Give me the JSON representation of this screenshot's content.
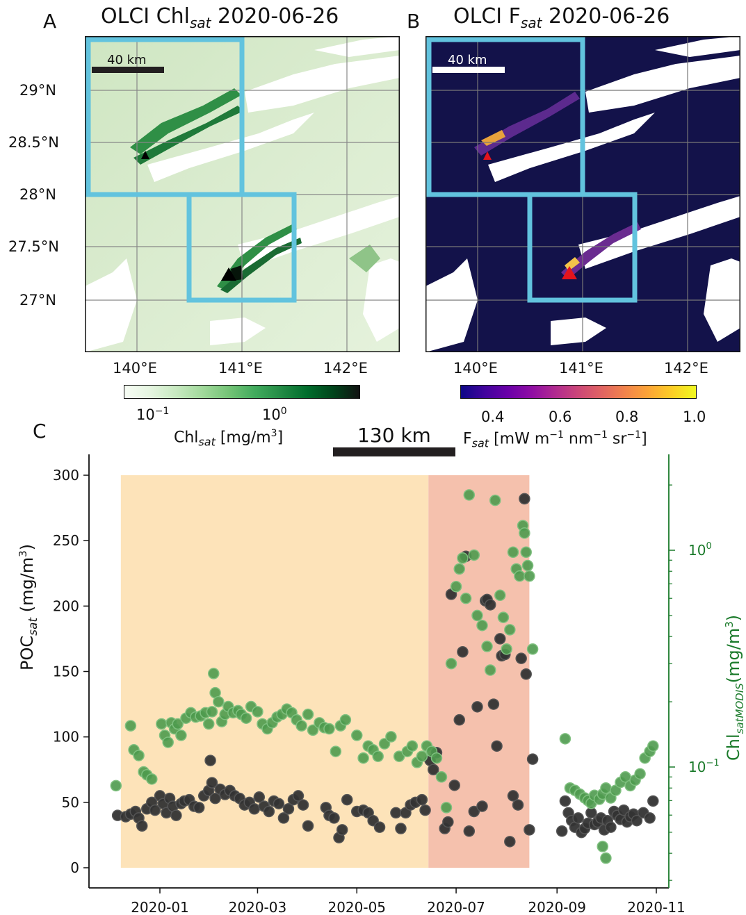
{
  "panels": {
    "A": {
      "letter": "A",
      "title_main": "OLCI Chl",
      "title_sub": "sat",
      "title_date": " 2020-06-26",
      "scale_label": "40 km",
      "lat_ticks": [
        "29°N",
        "28.5°N",
        "28°N",
        "27.5°N",
        "27°N"
      ],
      "lon_ticks": [
        "140°E",
        "141°E",
        "142°E"
      ],
      "colorbar": {
        "cmap": "Greens",
        "tick_labels": [
          {
            "base": "10",
            "exp": "−1"
          },
          {
            "base": "10",
            "exp": "0"
          }
        ],
        "label_main": "Chl",
        "label_sub": "sat",
        "label_unit": " [mg/m",
        "label_unit_exp": "3",
        "label_close": "]"
      }
    },
    "B": {
      "letter": "B",
      "title_main": "OLCI F",
      "title_sub": "sat",
      "title_date": " 2020-06-26",
      "scale_label": "40 km",
      "lon_ticks": [
        "140°E",
        "141°E",
        "142°E"
      ],
      "colorbar": {
        "cmap": "plasma",
        "tick_labels": [
          "0.4",
          "0.6",
          "0.8",
          "1.0"
        ],
        "range": [
          0.3,
          1.0
        ],
        "label_main": "F",
        "label_sub": "sat",
        "label_unit": " [mW m",
        "exp1": "−1",
        "unit2": " nm",
        "exp2": "−1",
        "unit3": " sr",
        "exp3": "−1",
        "label_close": "]"
      }
    },
    "C": {
      "letter": "C",
      "scale_label": "130 km"
    }
  },
  "colors": {
    "box": "#62c3de",
    "black_dots": "#333333",
    "green_dots": "#4e9a4e",
    "period1": "#fde3b9",
    "period2": "#f5c1ad",
    "green_axis": "#1a7a2a",
    "marker_red": "#e4141c"
  },
  "chart_data": {
    "type": "scatter",
    "x_label": "",
    "y_left_label": "POC",
    "y_left_label_sub": "sat",
    "y_left_label_unit": " (mg/m",
    "y_left_label_exp": "3",
    "y_right_label": "Chl",
    "y_right_label_sub": "satMODIS",
    "y_right_label_unit": "(mg/m",
    "y_right_label_exp": "3",
    "x_ticks": [
      "2020-01",
      "2020-03",
      "2020-05",
      "2020-07",
      "2020-09",
      "2020-11"
    ],
    "y_left_ticks": [
      0,
      50,
      100,
      150,
      200,
      250,
      300
    ],
    "y_left_range": [
      -10,
      315
    ],
    "y_right_ticks": [
      {
        "base": "10",
        "exp": "−1"
      },
      {
        "base": "10",
        "exp": "0"
      }
    ],
    "y_right_scale": "log",
    "shaded_periods": [
      {
        "start": "2019-12-08",
        "end": "2020-06-14",
        "ymax": 300
      },
      {
        "start": "2020-06-14",
        "end": "2020-08-15",
        "ymax": 300
      }
    ],
    "series": [
      {
        "axis": "left",
        "marker": "circle",
        "points": [
          [
            "2019-12-06",
            40
          ],
          [
            "2019-12-11",
            39
          ],
          [
            "2019-12-14",
            41
          ],
          [
            "2019-12-17",
            43
          ],
          [
            "2019-12-19",
            38
          ],
          [
            "2019-12-21",
            32
          ],
          [
            "2019-12-24",
            45
          ],
          [
            "2019-12-27",
            50
          ],
          [
            "2019-12-29",
            44
          ],
          [
            "2020-01-01",
            55
          ],
          [
            "2020-01-03",
            49
          ],
          [
            "2020-01-05",
            42
          ],
          [
            "2020-01-07",
            53
          ],
          [
            "2020-01-09",
            47
          ],
          [
            "2020-01-11",
            40
          ],
          [
            "2020-01-14",
            49
          ],
          [
            "2020-01-16",
            51
          ],
          [
            "2020-01-19",
            52
          ],
          [
            "2020-01-22",
            47
          ],
          [
            "2020-01-25",
            46
          ],
          [
            "2020-01-28",
            55
          ],
          [
            "2020-01-31",
            59
          ],
          [
            "2020-02-01",
            82
          ],
          [
            "2020-02-02",
            65
          ],
          [
            "2020-02-04",
            53
          ],
          [
            "2020-02-07",
            60
          ],
          [
            "2020-02-10",
            56
          ],
          [
            "2020-02-13",
            59
          ],
          [
            "2020-02-16",
            55
          ],
          [
            "2020-02-19",
            53
          ],
          [
            "2020-02-22",
            48
          ],
          [
            "2020-02-25",
            50
          ],
          [
            "2020-02-28",
            45
          ],
          [
            "2020-03-02",
            54
          ],
          [
            "2020-03-05",
            47
          ],
          [
            "2020-03-08",
            43
          ],
          [
            "2020-03-11",
            51
          ],
          [
            "2020-03-14",
            49
          ],
          [
            "2020-03-17",
            38
          ],
          [
            "2020-03-20",
            45
          ],
          [
            "2020-03-23",
            52
          ],
          [
            "2020-03-26",
            55
          ],
          [
            "2020-03-29",
            48
          ],
          [
            "2020-04-01",
            32
          ],
          [
            "2020-04-12",
            46
          ],
          [
            "2020-04-14",
            40
          ],
          [
            "2020-04-17",
            38
          ],
          [
            "2020-04-20",
            23
          ],
          [
            "2020-04-22",
            29
          ],
          [
            "2020-04-25",
            52
          ],
          [
            "2020-05-01",
            43
          ],
          [
            "2020-05-05",
            44
          ],
          [
            "2020-05-08",
            42
          ],
          [
            "2020-05-11",
            36
          ],
          [
            "2020-05-15",
            31
          ],
          [
            "2020-05-25",
            42
          ],
          [
            "2020-05-28",
            30
          ],
          [
            "2020-05-31",
            42
          ],
          [
            "2020-06-03",
            48
          ],
          [
            "2020-06-06",
            50
          ],
          [
            "2020-06-10",
            52
          ],
          [
            "2020-06-12",
            44
          ],
          [
            "2020-06-15",
            82
          ],
          [
            "2020-06-17",
            75
          ],
          [
            "2020-06-19",
            88
          ],
          [
            "2020-06-24",
            30
          ],
          [
            "2020-06-26",
            35
          ],
          [
            "2020-06-28",
            209
          ],
          [
            "2020-06-30",
            63
          ],
          [
            "2020-07-03",
            113
          ],
          [
            "2020-07-05",
            165
          ],
          [
            "2020-07-07",
            238
          ],
          [
            "2020-07-09",
            28
          ],
          [
            "2020-07-12",
            43
          ],
          [
            "2020-07-14",
            123
          ],
          [
            "2020-07-17",
            47
          ],
          [
            "2020-07-19",
            204
          ],
          [
            "2020-07-20",
            205
          ],
          [
            "2020-07-22",
            201
          ],
          [
            "2020-07-24",
            125
          ],
          [
            "2020-07-26",
            93
          ],
          [
            "2020-07-28",
            175
          ],
          [
            "2020-07-29",
            162
          ],
          [
            "2020-07-31",
            163
          ],
          [
            "2020-08-03",
            20
          ],
          [
            "2020-08-05",
            55
          ],
          [
            "2020-08-08",
            48
          ],
          [
            "2020-08-10",
            160
          ],
          [
            "2020-08-12",
            282
          ],
          [
            "2020-08-13",
            148
          ],
          [
            "2020-08-15",
            29
          ],
          [
            "2020-08-17",
            83
          ],
          [
            "2020-09-04",
            28
          ],
          [
            "2020-09-06",
            51
          ],
          [
            "2020-09-08",
            42
          ],
          [
            "2020-09-10",
            36
          ],
          [
            "2020-09-12",
            31
          ],
          [
            "2020-09-14",
            38
          ],
          [
            "2020-09-16",
            27
          ],
          [
            "2020-09-18",
            30
          ],
          [
            "2020-09-20",
            34
          ],
          [
            "2020-09-22",
            42
          ],
          [
            "2020-09-24",
            33
          ],
          [
            "2020-09-26",
            35
          ],
          [
            "2020-09-28",
            38
          ],
          [
            "2020-09-30",
            29
          ],
          [
            "2020-10-02",
            36
          ],
          [
            "2020-10-04",
            31
          ],
          [
            "2020-10-06",
            43
          ],
          [
            "2020-10-08",
            40
          ],
          [
            "2020-10-10",
            37
          ],
          [
            "2020-10-12",
            44
          ],
          [
            "2020-10-14",
            35
          ],
          [
            "2020-10-16",
            39
          ],
          [
            "2020-10-18",
            41
          ],
          [
            "2020-10-20",
            36
          ],
          [
            "2020-10-24",
            42
          ],
          [
            "2020-10-28",
            38
          ],
          [
            "2020-10-30",
            51
          ]
        ]
      },
      {
        "axis": "right",
        "marker": "circle",
        "points": [
          [
            "2019-12-05",
            0.082
          ],
          [
            "2019-12-14",
            0.155
          ],
          [
            "2019-12-16",
            0.12
          ],
          [
            "2019-12-19",
            0.113
          ],
          [
            "2019-12-22",
            0.095
          ],
          [
            "2019-12-24",
            0.092
          ],
          [
            "2019-12-27",
            0.088
          ],
          [
            "2020-01-02",
            0.158
          ],
          [
            "2020-01-04",
            0.14
          ],
          [
            "2020-01-06",
            0.13
          ],
          [
            "2020-01-08",
            0.16
          ],
          [
            "2020-01-10",
            0.15
          ],
          [
            "2020-01-12",
            0.158
          ],
          [
            "2020-01-14",
            0.14
          ],
          [
            "2020-01-17",
            0.168
          ],
          [
            "2020-01-20",
            0.178
          ],
          [
            "2020-01-23",
            0.17
          ],
          [
            "2020-01-26",
            0.172
          ],
          [
            "2020-01-29",
            0.178
          ],
          [
            "2020-01-31",
            0.158
          ],
          [
            "2020-02-02",
            0.18
          ],
          [
            "2020-02-03",
            0.27
          ],
          [
            "2020-02-04",
            0.22
          ],
          [
            "2020-02-06",
            0.2
          ],
          [
            "2020-02-08",
            0.162
          ],
          [
            "2020-02-10",
            0.175
          ],
          [
            "2020-02-12",
            0.19
          ],
          [
            "2020-02-15",
            0.178
          ],
          [
            "2020-02-18",
            0.182
          ],
          [
            "2020-02-20",
            0.175
          ],
          [
            "2020-02-23",
            0.168
          ],
          [
            "2020-02-26",
            0.19
          ],
          [
            "2020-03-01",
            0.18
          ],
          [
            "2020-03-04",
            0.158
          ],
          [
            "2020-03-07",
            0.15
          ],
          [
            "2020-03-10",
            0.16
          ],
          [
            "2020-03-13",
            0.17
          ],
          [
            "2020-03-16",
            0.175
          ],
          [
            "2020-03-19",
            0.185
          ],
          [
            "2020-03-22",
            0.178
          ],
          [
            "2020-03-25",
            0.165
          ],
          [
            "2020-03-28",
            0.155
          ],
          [
            "2020-04-01",
            0.175
          ],
          [
            "2020-04-04",
            0.148
          ],
          [
            "2020-04-08",
            0.16
          ],
          [
            "2020-04-11",
            0.152
          ],
          [
            "2020-04-14",
            0.15
          ],
          [
            "2020-04-18",
            0.118
          ],
          [
            "2020-04-21",
            0.155
          ],
          [
            "2020-04-24",
            0.165
          ],
          [
            "2020-05-01",
            0.14
          ],
          [
            "2020-05-05",
            0.11
          ],
          [
            "2020-05-08",
            0.125
          ],
          [
            "2020-05-11",
            0.12
          ],
          [
            "2020-05-14",
            0.112
          ],
          [
            "2020-05-18",
            0.128
          ],
          [
            "2020-05-22",
            0.138
          ],
          [
            "2020-05-27",
            0.112
          ],
          [
            "2020-06-01",
            0.118
          ],
          [
            "2020-06-04",
            0.125
          ],
          [
            "2020-06-07",
            0.105
          ],
          [
            "2020-06-10",
            0.112
          ],
          [
            "2020-06-13",
            0.125
          ],
          [
            "2020-06-16",
            0.118
          ],
          [
            "2020-06-19",
            0.11
          ],
          [
            "2020-06-22",
            0.09
          ],
          [
            "2020-06-25",
            0.065
          ],
          [
            "2020-06-28",
            0.3
          ],
          [
            "2020-07-01",
            0.68
          ],
          [
            "2020-07-03",
            0.82
          ],
          [
            "2020-07-05",
            0.92
          ],
          [
            "2020-07-07",
            0.6
          ],
          [
            "2020-07-09",
            1.8
          ],
          [
            "2020-07-12",
            0.95
          ],
          [
            "2020-07-14",
            0.5
          ],
          [
            "2020-07-17",
            0.45
          ],
          [
            "2020-07-20",
            0.36
          ],
          [
            "2020-07-22",
            0.28
          ],
          [
            "2020-07-25",
            1.7
          ],
          [
            "2020-07-28",
            0.62
          ],
          [
            "2020-07-30",
            0.49
          ],
          [
            "2020-08-01",
            0.35
          ],
          [
            "2020-08-03",
            0.43
          ],
          [
            "2020-08-05",
            0.98
          ],
          [
            "2020-08-07",
            0.82
          ],
          [
            "2020-08-09",
            0.76
          ],
          [
            "2020-08-11",
            1.3
          ],
          [
            "2020-08-12",
            1.2
          ],
          [
            "2020-08-13",
            0.98
          ],
          [
            "2020-08-14",
            0.85
          ],
          [
            "2020-08-15",
            0.76
          ],
          [
            "2020-08-17",
            0.35
          ],
          [
            "2020-09-06",
            0.135
          ],
          [
            "2020-09-09",
            0.08
          ],
          [
            "2020-09-12",
            0.078
          ],
          [
            "2020-09-15",
            0.075
          ],
          [
            "2020-09-18",
            0.072
          ],
          [
            "2020-09-20",
            0.07
          ],
          [
            "2020-09-22",
            0.068
          ],
          [
            "2020-09-24",
            0.074
          ],
          [
            "2020-09-27",
            0.071
          ],
          [
            "2020-09-29",
            0.075
          ],
          [
            "2020-10-01",
            0.08
          ],
          [
            "2020-10-04",
            0.072
          ],
          [
            "2020-10-07",
            0.078
          ],
          [
            "2020-10-10",
            0.085
          ],
          [
            "2020-10-13",
            0.09
          ],
          [
            "2020-10-16",
            0.082
          ],
          [
            "2020-10-19",
            0.087
          ],
          [
            "2020-10-22",
            0.093
          ],
          [
            "2020-10-25",
            0.11
          ],
          [
            "2020-10-28",
            0.118
          ],
          [
            "2020-10-30",
            0.125
          ],
          [
            "2020-09-29",
            0.043
          ],
          [
            "2020-10-01",
            0.038
          ]
        ]
      }
    ]
  }
}
